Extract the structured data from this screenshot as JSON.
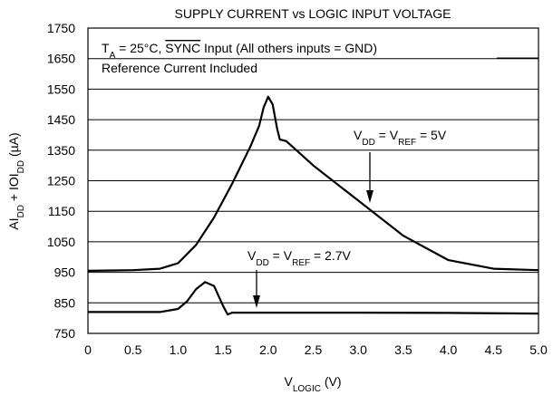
{
  "chart_data": {
    "type": "line",
    "title": "SUPPLY CURRENT vs LOGIC INPUT VOLTAGE",
    "x_label": [
      {
        "t": "V"
      },
      {
        "sub": "LOGIC"
      },
      {
        "t": " (V)"
      }
    ],
    "y_label": [
      {
        "t": "AI"
      },
      {
        "sub": "DD"
      },
      {
        "t": " + IOI"
      },
      {
        "sub": "DD"
      },
      {
        "t": " (µA)"
      }
    ],
    "xlim": [
      0,
      5
    ],
    "ylim": [
      750,
      1750
    ],
    "xticks": [
      0,
      0.5,
      {
        "value": 1,
        "label": "1.0"
      },
      1.5,
      {
        "value": 2,
        "label": "2.0"
      },
      2.5,
      {
        "value": 3,
        "label": "3.0"
      },
      3.5,
      {
        "value": 4,
        "label": "4.0"
      },
      4.5,
      {
        "value": 5,
        "label": "5.0"
      }
    ],
    "yticks": [
      750,
      850,
      950,
      1050,
      1150,
      1250,
      1350,
      1450,
      1550,
      1650,
      1750
    ],
    "grid": "y",
    "series": [
      {
        "color": "#000000",
        "x": [
          0,
          0.5,
          0.8,
          1.0,
          1.2,
          1.4,
          1.6,
          1.8,
          1.9,
          1.95,
          2.0,
          2.05,
          2.1,
          2.13,
          2.2,
          2.5,
          3.0,
          3.5,
          4.0,
          4.5,
          5.0
        ],
        "values": [
          955,
          957,
          962,
          980,
          1040,
          1130,
          1240,
          1360,
          1430,
          1490,
          1525,
          1500,
          1420,
          1385,
          1380,
          1300,
          1185,
          1070,
          990,
          962,
          957
        ]
      },
      {
        "color": "#000000",
        "x": [
          0,
          0.8,
          1.0,
          1.1,
          1.2,
          1.3,
          1.4,
          1.5,
          1.55,
          1.6,
          2.0,
          3.0,
          4.0,
          5.0
        ],
        "values": [
          820,
          820,
          830,
          855,
          895,
          918,
          905,
          840,
          812,
          818,
          818,
          818,
          817,
          815
        ]
      }
    ],
    "annotations": [
      {
        "runs": [
          {
            "t": "T"
          },
          {
            "sub": "A"
          },
          {
            "t": " = 25°C, "
          },
          {
            "over": "SYNC"
          },
          {
            "t": " Input (All others inputs = GND)"
          }
        ]
      },
      {
        "runs": [
          {
            "t": "Reference Current Included"
          }
        ]
      },
      {
        "runs": [
          {
            "t": "V"
          },
          {
            "sub": "DD"
          },
          {
            "t": " = V"
          },
          {
            "sub": "REF"
          },
          {
            "t": " = 5V"
          }
        ]
      },
      {
        "runs": [
          {
            "t": "V"
          },
          {
            "sub": "DD"
          },
          {
            "t": " = V"
          },
          {
            "sub": "REF"
          },
          {
            "t": " = 2.7V"
          }
        ]
      }
    ]
  }
}
